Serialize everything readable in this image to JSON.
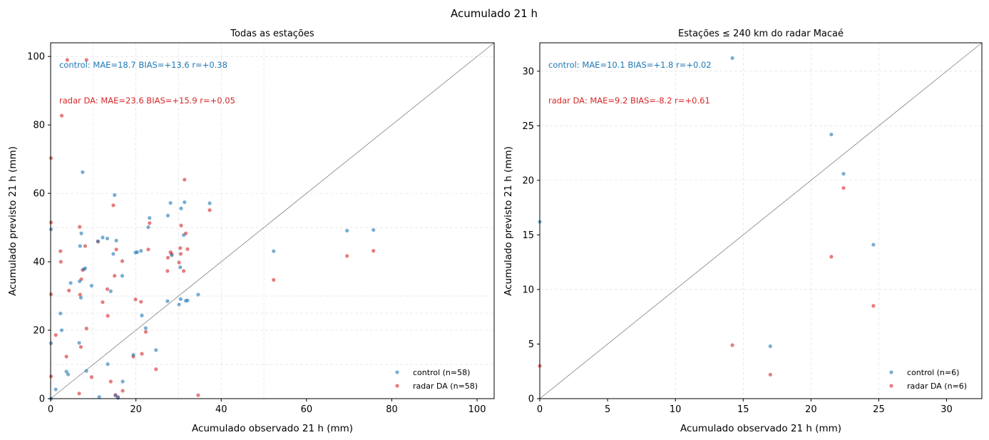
{
  "figure": {
    "suptitle": "Acumulado 21 h"
  },
  "colors": {
    "control": "#1f77b4",
    "radar_da": "#d62728",
    "identity_line": "#808080"
  },
  "chart_data": [
    {
      "type": "scatter",
      "title": "Todas as estações",
      "xlabel": "Acumulado observado 21 h (mm)",
      "ylabel": "Acumulado previsto 21 h (mm)",
      "xlim": [
        0,
        104
      ],
      "ylim": [
        0,
        104
      ],
      "xticks": [
        0,
        20,
        40,
        60,
        80,
        100
      ],
      "yticks": [
        0,
        20,
        40,
        60,
        80,
        100
      ],
      "xticklabels": [
        "0",
        "20",
        "40",
        "60",
        "80",
        "100"
      ],
      "yticklabels": [
        "0",
        "20",
        "40",
        "60",
        "80",
        "100"
      ],
      "grid_x": [
        10,
        20,
        30,
        40,
        50
      ],
      "grid_y": [
        10,
        20,
        25,
        30,
        50,
        60,
        100
      ],
      "identity_line": true,
      "legend_placement": "lower right",
      "annotations": [
        {
          "text": "control: MAE=18.7  BIAS=+13.6  r=+0.38",
          "series": "control",
          "row": 1
        },
        {
          "text": "radar DA: MAE=23.6  BIAS=+15.9  r=+0.05",
          "series": "radar DA",
          "row": 2
        }
      ],
      "series": [
        {
          "name": "control (n=58)",
          "key": "control",
          "x": [
            0.1,
            0.1,
            1.2,
            2.3,
            2.6,
            3.7,
            4.1,
            4.7,
            6.7,
            6.8,
            6.9,
            7.1,
            7.2,
            7.5,
            7.8,
            8.1,
            8.4,
            9.6,
            11.1,
            11.4,
            12.2,
            13.3,
            13.4,
            14.1,
            14.7,
            15.0,
            15.2,
            15.4,
            15.8,
            16.8,
            16.9,
            19.4,
            19.9,
            20.3,
            21.2,
            21.4,
            22.3,
            22.9,
            23.2,
            24.7,
            27.4,
            27.5,
            28.1,
            28.4,
            30.1,
            30.4,
            30.5,
            30.6,
            31.2,
            31.4,
            31.7,
            32.1,
            34.6,
            37.3,
            52.3,
            69.5,
            75.7,
            0.1
          ],
          "y": [
            16.2,
            49.5,
            2.7,
            24.9,
            20.0,
            7.9,
            7.1,
            33.8,
            16.3,
            34.3,
            44.6,
            29.5,
            48.3,
            66.2,
            37.8,
            38.1,
            8.1,
            33.0,
            46.0,
            0.5,
            47.1,
            46.8,
            10.1,
            31.4,
            42.3,
            59.5,
            0.9,
            46.2,
            0.2,
            35.9,
            5.0,
            12.8,
            42.7,
            42.8,
            43.2,
            24.3,
            20.6,
            50.1,
            52.8,
            14.2,
            28.5,
            53.5,
            57.2,
            41.9,
            27.5,
            38.4,
            29.1,
            55.6,
            47.8,
            57.4,
            28.6,
            28.7,
            30.4,
            57.1,
            43.1,
            49.1,
            49.3,
            0.0
          ]
        },
        {
          "name": "radar DA (n=58)",
          "key": "radar_da",
          "x": [
            0.1,
            0.1,
            0.1,
            0.1,
            1.2,
            2.3,
            2.6,
            3.7,
            3.9,
            4.3,
            6.7,
            6.8,
            6.9,
            7.1,
            7.2,
            7.5,
            8.1,
            8.4,
            9.6,
            11.1,
            12.2,
            13.3,
            13.4,
            14.1,
            14.7,
            15.0,
            15.2,
            15.4,
            15.8,
            16.8,
            16.9,
            19.4,
            19.9,
            21.2,
            21.4,
            22.3,
            22.9,
            23.2,
            24.7,
            27.4,
            27.5,
            28.1,
            28.4,
            30.1,
            30.4,
            30.5,
            30.6,
            31.2,
            31.4,
            31.7,
            32.1,
            34.6,
            37.3,
            52.3,
            69.5,
            75.7,
            8.4,
            2.4
          ],
          "y": [
            6.5,
            30.5,
            51.5,
            70.3,
            18.6,
            43.1,
            82.7,
            12.3,
            99.0,
            31.6,
            1.5,
            50.2,
            30.4,
            15.1,
            34.9,
            37.6,
            44.6,
            99.0,
            6.3,
            45.9,
            28.2,
            32.0,
            24.2,
            5.0,
            56.5,
            35.9,
            1.1,
            43.6,
            0.5,
            40.2,
            2.3,
            12.3,
            29.0,
            28.3,
            13.1,
            19.5,
            43.6,
            51.3,
            8.6,
            37.3,
            41.2,
            42.8,
            42.3,
            39.8,
            44.0,
            42.3,
            50.6,
            37.3,
            64.0,
            48.3,
            43.7,
            1.0,
            55.1,
            34.7,
            41.7,
            43.2,
            20.5,
            40.0
          ]
        }
      ]
    },
    {
      "type": "scatter",
      "title": "Estações ≤ 240 km do radar Macaé",
      "xlabel": "Acumulado observado 21 h (mm)",
      "ylabel": "Acumulado previsto 21 h (mm)",
      "xlim": [
        0,
        32.6
      ],
      "ylim": [
        0,
        32.6
      ],
      "xticks": [
        0,
        5,
        10,
        15,
        20,
        25,
        30
      ],
      "yticks": [
        0,
        5,
        10,
        15,
        20,
        25,
        30
      ],
      "xticklabels": [
        "0",
        "5",
        "10",
        "15",
        "20",
        "25",
        "30"
      ],
      "yticklabels": [
        "0",
        "5",
        "10",
        "15",
        "20",
        "25",
        "30"
      ],
      "grid_x": [
        10,
        15,
        20,
        25
      ],
      "grid_y": [
        10,
        20,
        25,
        30
      ],
      "identity_line": true,
      "legend_placement": "lower right",
      "annotations": [
        {
          "text": "control: MAE=10.1  BIAS=+1.8  r=+0.02",
          "series": "control",
          "row": 1
        },
        {
          "text": "radar DA: MAE=9.2  BIAS=-8.2  r=+0.61",
          "series": "radar DA",
          "row": 2
        }
      ],
      "series": [
        {
          "name": "control (n=6)",
          "key": "control",
          "x": [
            0.0,
            14.2,
            17.0,
            21.5,
            22.4,
            24.6
          ],
          "y": [
            16.2,
            31.2,
            4.8,
            24.2,
            20.6,
            14.1
          ]
        },
        {
          "name": "radar DA (n=6)",
          "key": "radar_da",
          "x": [
            0.0,
            14.2,
            17.0,
            21.5,
            22.4,
            24.6
          ],
          "y": [
            3.0,
            4.9,
            2.2,
            13.0,
            19.3,
            8.5
          ]
        }
      ]
    }
  ]
}
